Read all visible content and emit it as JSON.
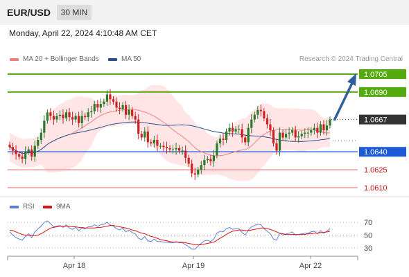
{
  "header": {
    "pair": "EUR/USD",
    "timeframe": "30 MIN"
  },
  "datetime": "Monday, April 22, 2024 4:10:48 AM CET",
  "legend": {
    "bb_label": "MA 20 + Bollinger Bands",
    "ma50_label": "MA 50",
    "bb_color": "#f08080",
    "ma50_color": "#2b4f8a"
  },
  "credit": "Research © 2024 Trading Central",
  "rsi_legend": {
    "rsi_label": "RSI",
    "ma9_label": "9MA",
    "rsi_color": "#5b7fd6",
    "ma9_color": "#dd1111"
  },
  "colors": {
    "up": "#2a7a2a",
    "down": "#cc2222",
    "resistance": "#55aa11",
    "pivot": "#1c5ad6",
    "support": "#e06060",
    "arrow": "#2f5f9e"
  },
  "chart_data": [
    {
      "type": "candlestick",
      "ylim": [
        1.0602,
        1.0712
      ],
      "x_tick_labels": [
        "Apr 18",
        "Apr 19",
        "Apr 22"
      ],
      "price_lines": [
        {
          "value": 1.0705,
          "label": "1.0705",
          "kind": "resistance"
        },
        {
          "value": 1.069,
          "label": "1.0690",
          "kind": "resistance"
        },
        {
          "value": 1.0667,
          "label": "1.0667",
          "kind": "current"
        },
        {
          "value": 1.064,
          "label": "1.0640",
          "kind": "pivot"
        },
        {
          "value": 1.0625,
          "label": "1.0625",
          "kind": "support"
        },
        {
          "value": 1.061,
          "label": "1.0610",
          "kind": "support"
        }
      ],
      "close": [
        1.0644,
        1.0641,
        1.0638,
        1.0636,
        1.0634,
        1.064,
        1.0642,
        1.0636,
        1.0645,
        1.065,
        1.0656,
        1.0666,
        1.0673,
        1.067,
        1.0667,
        1.067,
        1.0671,
        1.0668,
        1.0673,
        1.0669,
        1.0667,
        1.067,
        1.0664,
        1.067,
        1.0669,
        1.0673,
        1.0674,
        1.068,
        1.0677,
        1.068,
        1.0682,
        1.0688,
        1.0684,
        1.0682,
        1.0677,
        1.0676,
        1.0679,
        1.0671,
        1.0675,
        1.067,
        1.0667,
        1.0655,
        1.0652,
        1.0657,
        1.0648,
        1.0647,
        1.065,
        1.0645,
        1.0645,
        1.0644,
        1.0643,
        1.0642,
        1.0642,
        1.0643,
        1.0641,
        1.0641,
        1.0635,
        1.063,
        1.0622,
        1.0621,
        1.0625,
        1.0629,
        1.0633,
        1.0634,
        1.0632,
        1.0637,
        1.0647,
        1.0651,
        1.065,
        1.0657,
        1.066,
        1.0657,
        1.0659,
        1.0659,
        1.0652,
        1.0648,
        1.066,
        1.0667,
        1.0671,
        1.0675,
        1.0674,
        1.0668,
        1.0663,
        1.0658,
        1.0647,
        1.0641,
        1.0656,
        1.0652,
        1.0655,
        1.0656,
        1.0658,
        1.0652,
        1.0653,
        1.0655,
        1.0656,
        1.0656,
        1.0658,
        1.066,
        1.0656,
        1.0663,
        1.0658,
        1.0662,
        1.0667
      ],
      "rsi": [
        55,
        50,
        46,
        44,
        42,
        48,
        52,
        46,
        55,
        60,
        64,
        70,
        72,
        68,
        63,
        64,
        65,
        62,
        66,
        61,
        59,
        62,
        57,
        61,
        60,
        63,
        63,
        66,
        64,
        66,
        67,
        70,
        66,
        64,
        60,
        58,
        61,
        55,
        58,
        54,
        52,
        45,
        43,
        48,
        41,
        40,
        44,
        40,
        40,
        39,
        39,
        38,
        38,
        40,
        38,
        38,
        35,
        32,
        28,
        28,
        33,
        37,
        41,
        42,
        40,
        44,
        53,
        56,
        55,
        60,
        62,
        59,
        60,
        60,
        54,
        50,
        58,
        63,
        65,
        67,
        66,
        60,
        56,
        52,
        44,
        42,
        53,
        50,
        52,
        53,
        55,
        50,
        51,
        52,
        53,
        53,
        55,
        56,
        52,
        57,
        53,
        56,
        60
      ],
      "rsi_ma9": [
        58,
        57,
        55,
        53,
        51,
        50,
        50,
        49,
        49,
        50,
        52,
        55,
        58,
        61,
        62,
        63,
        64,
        64,
        64,
        64,
        63,
        63,
        62,
        62,
        61,
        61,
        61,
        61,
        62,
        62,
        63,
        64,
        65,
        65,
        64,
        63,
        62,
        61,
        60,
        58,
        57,
        55,
        53,
        52,
        50,
        48,
        47,
        45,
        43,
        42,
        41,
        40,
        39,
        39,
        39,
        39,
        38,
        37,
        36,
        35,
        35,
        35,
        36,
        37,
        38,
        39,
        42,
        45,
        48,
        51,
        54,
        56,
        57,
        58,
        58,
        57,
        57,
        58,
        59,
        60,
        61,
        61,
        60,
        59,
        57,
        55,
        53,
        52,
        51,
        51,
        51,
        51,
        51,
        51,
        51,
        52,
        52,
        53,
        53,
        54,
        54,
        55,
        56
      ],
      "rsi_levels": [
        70,
        50,
        30
      ],
      "rsi_range": [
        15,
        90
      ]
    }
  ]
}
